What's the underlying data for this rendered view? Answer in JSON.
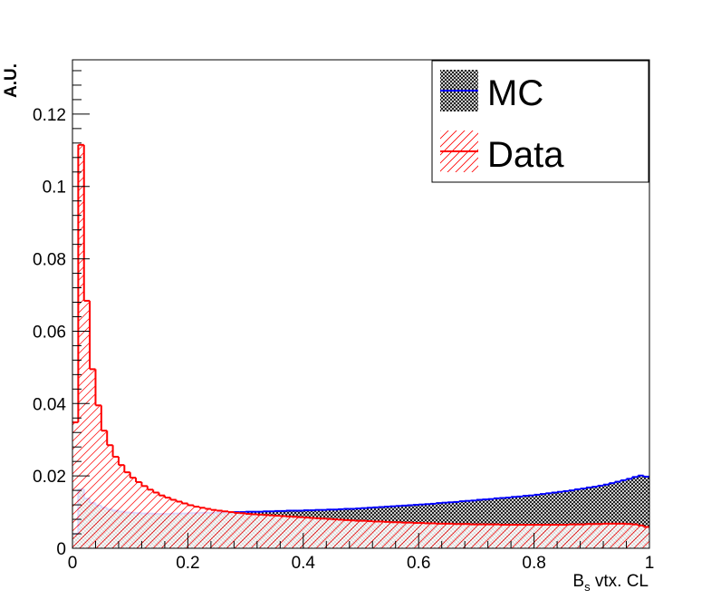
{
  "chart_data": {
    "type": "histogram",
    "title": "",
    "xlabel": {
      "main": "B",
      "sub": "s",
      "rest": " vtx. CL"
    },
    "ylabel": "A.U.",
    "xlim": [
      0,
      1
    ],
    "ylim": [
      0,
      0.135
    ],
    "bins": 100,
    "x_tick_labels": [
      "0",
      "0.2",
      "0.4",
      "0.6",
      "0.8",
      "1"
    ],
    "y_tick_labels": [
      "0",
      "0.02",
      "0.04",
      "0.06",
      "0.08",
      "0.1",
      "0.12"
    ],
    "legend_placement": "top-right",
    "grid": false,
    "series": [
      {
        "name": "MC",
        "color": "#0000ff",
        "fill": "crosshatch-dense",
        "values": [
          0.004,
          0.0163,
          0.0137,
          0.0125,
          0.0118,
          0.0112,
          0.0107,
          0.0104,
          0.0101,
          0.0099,
          0.0098,
          0.0097,
          0.0096,
          0.0096,
          0.0095,
          0.0095,
          0.0095,
          0.0096,
          0.0096,
          0.0096,
          0.0097,
          0.0097,
          0.0098,
          0.0098,
          0.0098,
          0.0099,
          0.0099,
          0.0099,
          0.01,
          0.01,
          0.0101,
          0.0101,
          0.0101,
          0.0102,
          0.0102,
          0.0103,
          0.0103,
          0.0104,
          0.0104,
          0.0104,
          0.0105,
          0.0105,
          0.0106,
          0.0106,
          0.0107,
          0.0107,
          0.0108,
          0.0109,
          0.0109,
          0.011,
          0.0111,
          0.0112,
          0.0113,
          0.0114,
          0.0115,
          0.0116,
          0.0117,
          0.0118,
          0.0119,
          0.012,
          0.0121,
          0.0122,
          0.0123,
          0.0125,
          0.0126,
          0.0127,
          0.0128,
          0.013,
          0.0131,
          0.0132,
          0.0134,
          0.0135,
          0.0136,
          0.0138,
          0.0139,
          0.014,
          0.0142,
          0.0143,
          0.0145,
          0.0146,
          0.0148,
          0.015,
          0.0152,
          0.0154,
          0.0156,
          0.0158,
          0.016,
          0.0163,
          0.0165,
          0.0168,
          0.017,
          0.0173,
          0.0176,
          0.018,
          0.0184,
          0.0188,
          0.0192,
          0.0197,
          0.0201,
          0.0198
        ]
      },
      {
        "name": "Data",
        "color": "#ff0000",
        "fill": "hatch-diagonal",
        "values": [
          0.0348,
          0.1115,
          0.0684,
          0.0495,
          0.0395,
          0.0325,
          0.0285,
          0.0253,
          0.023,
          0.021,
          0.0195,
          0.0183,
          0.0172,
          0.0162,
          0.0154,
          0.0146,
          0.014,
          0.0134,
          0.0129,
          0.0124,
          0.0119,
          0.0115,
          0.0112,
          0.0109,
          0.0106,
          0.0104,
          0.0102,
          0.01,
          0.0098,
          0.0097,
          0.0095,
          0.0094,
          0.0093,
          0.0092,
          0.0091,
          0.009,
          0.0089,
          0.0088,
          0.0087,
          0.0086,
          0.0085,
          0.0084,
          0.0083,
          0.0082,
          0.0081,
          0.008,
          0.0079,
          0.0078,
          0.0077,
          0.0076,
          0.0076,
          0.0075,
          0.0074,
          0.0074,
          0.0073,
          0.0072,
          0.0072,
          0.0071,
          0.0071,
          0.007,
          0.007,
          0.0069,
          0.0069,
          0.0068,
          0.0068,
          0.0068,
          0.0067,
          0.0067,
          0.0067,
          0.0066,
          0.0066,
          0.0066,
          0.0066,
          0.0066,
          0.0065,
          0.0065,
          0.0065,
          0.0065,
          0.0065,
          0.0065,
          0.0065,
          0.0065,
          0.0065,
          0.0065,
          0.0065,
          0.0065,
          0.0066,
          0.0066,
          0.0066,
          0.0067,
          0.0067,
          0.0067,
          0.0068,
          0.0068,
          0.0068,
          0.0068,
          0.0067,
          0.0066,
          0.0063,
          0.0059
        ]
      }
    ]
  }
}
